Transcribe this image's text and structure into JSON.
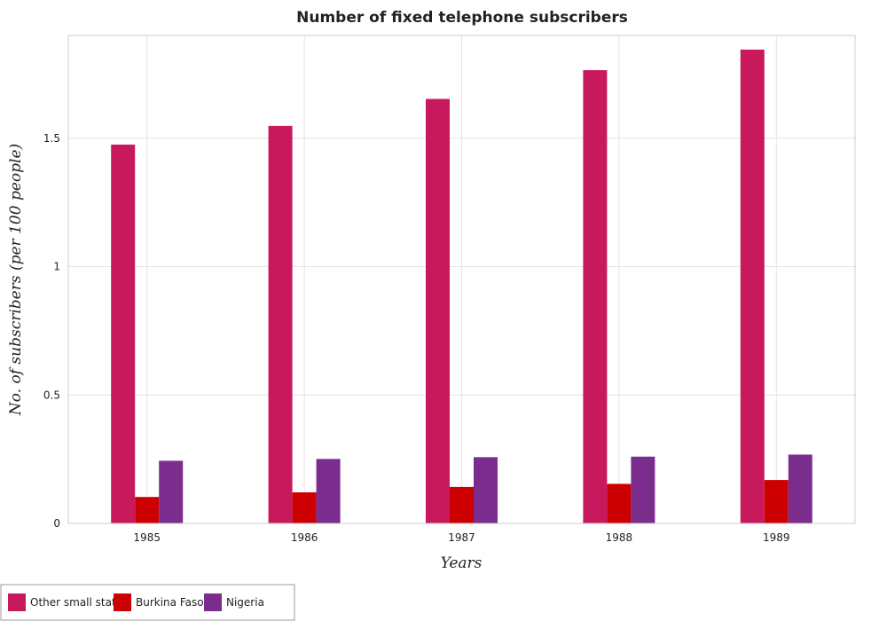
{
  "chart_data": {
    "type": "bar",
    "title": "Number of fixed telephone subscribers",
    "xlabel": "Years",
    "ylabel": "No. of subscribers (per 100 people)",
    "categories": [
      "1985",
      "1986",
      "1987",
      "1988",
      "1989"
    ],
    "series": [
      {
        "name": "Other small states",
        "color": "#c8195d",
        "values": [
          1.475,
          1.548,
          1.653,
          1.765,
          1.845
        ]
      },
      {
        "name": "Burkina Faso",
        "color": "#cc0000",
        "values": [
          0.103,
          0.121,
          0.142,
          0.154,
          0.169
        ]
      },
      {
        "name": "Nigeria",
        "color": "#7b2d8e",
        "values": [
          0.244,
          0.251,
          0.258,
          0.26,
          0.268
        ]
      }
    ],
    "yticks": [
      0,
      0.5,
      1,
      1.5
    ],
    "ytick_labels": [
      "0",
      "0.5",
      "1",
      "1.5"
    ],
    "ylim": [
      0,
      1.9
    ],
    "grid": true,
    "legend_position": "bottom-left"
  }
}
